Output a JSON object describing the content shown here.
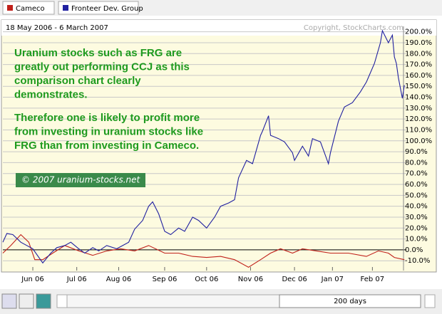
{
  "chart_data": {
    "type": "line",
    "date_range": "18 May 2006 - 6 March 2007",
    "copyright": "Copyright, StockCharts.com",
    "annotation": [
      "Uranium stocks such as FRG are",
      "greatly out performing CCJ as this",
      "comparison chart clearly",
      "demonstrates.",
      "Therefore one is likely to profit more",
      "from investing in uranium stocks like",
      "FRG than from investing in Cameco."
    ],
    "watermark": "© 2007 uranium-stocks.net",
    "period": "200 days",
    "xlim": [
      0,
      202
    ],
    "xticks": [
      {
        "value": 15,
        "label": "Jun 06"
      },
      {
        "value": 37,
        "label": "Jul 06"
      },
      {
        "value": 58,
        "label": "Aug 06"
      },
      {
        "value": 81,
        "label": "Sep 06"
      },
      {
        "value": 102,
        "label": "Oct 06"
      },
      {
        "value": 124,
        "label": "Nov 06"
      },
      {
        "value": 146,
        "label": "Dec 06"
      },
      {
        "value": 165,
        "label": "Jan 07"
      },
      {
        "value": 185,
        "label": "Feb 07"
      }
    ],
    "ylim": [
      -19,
      205
    ],
    "yticks": [
      {
        "value": -10,
        "label": "-10.0%"
      },
      {
        "value": 0,
        "label": "0.0%"
      },
      {
        "value": 10,
        "label": "10.0%"
      },
      {
        "value": 20,
        "label": "20.0%"
      },
      {
        "value": 30,
        "label": "30.0%"
      },
      {
        "value": 40,
        "label": "40.0%"
      },
      {
        "value": 50,
        "label": "50.0%"
      },
      {
        "value": 60,
        "label": "60.0%"
      },
      {
        "value": 70,
        "label": "70.0%"
      },
      {
        "value": 80,
        "label": "80.0%"
      },
      {
        "value": 90,
        "label": "90.0%"
      },
      {
        "value": 100,
        "label": "100.0%"
      },
      {
        "value": 110,
        "label": "110.0%"
      },
      {
        "value": 120,
        "label": "120.0%"
      },
      {
        "value": 130,
        "label": "130.0%"
      },
      {
        "value": 140,
        "label": "140.0%"
      },
      {
        "value": 150,
        "label": "150.0%"
      },
      {
        "value": 160,
        "label": "160.0%"
      },
      {
        "value": 170,
        "label": "170.0%"
      },
      {
        "value": 180,
        "label": "180.0%"
      },
      {
        "value": 190,
        "label": "190.0%"
      },
      {
        "value": 200,
        "label": "200.0%"
      }
    ],
    "grid": true,
    "series": [
      {
        "name": "Cameco",
        "color": "#c0201a",
        "x": [
          0,
          4,
          9,
          13,
          16,
          20,
          25,
          31,
          38,
          45,
          52,
          59,
          66,
          73,
          81,
          88,
          95,
          102,
          109,
          116,
          123,
          129,
          134,
          139,
          145,
          150,
          157,
          164,
          173,
          182,
          188,
          193,
          196,
          201
        ],
        "values": [
          -3,
          4,
          14,
          7,
          -9,
          -9,
          -3,
          4,
          -1,
          -5,
          -1,
          1,
          -1,
          4,
          -3,
          -3,
          -6,
          -7,
          -6,
          -9,
          -16,
          -9,
          -3,
          1,
          -3,
          1,
          -1,
          -3,
          -3,
          -6,
          -1,
          -3,
          -7,
          -9
        ]
      },
      {
        "name": "Fronteer Dev. Group",
        "color": "#2020a0",
        "x": [
          0,
          2,
          5,
          9,
          15,
          20,
          24,
          27,
          31,
          34,
          38,
          41,
          45,
          48,
          52,
          57,
          63,
          66,
          70,
          73,
          75,
          78,
          81,
          84,
          88,
          91,
          95,
          98,
          102,
          106,
          109,
          113,
          116,
          118,
          122,
          125,
          129,
          130,
          133,
          134,
          138,
          141,
          145,
          146,
          150,
          153,
          155,
          159,
          163,
          164,
          168,
          171,
          175,
          179,
          182,
          186,
          189,
          190,
          193,
          195,
          196,
          197,
          198,
          200,
          201
        ],
        "values": [
          7,
          15,
          14,
          7,
          1,
          -12,
          -3,
          2,
          4,
          7,
          1,
          -3,
          2,
          -1,
          4,
          1,
          7,
          19,
          27,
          40,
          44,
          33,
          17,
          14,
          20,
          17,
          30,
          27,
          20,
          30,
          40,
          43,
          46,
          66,
          82,
          79,
          105,
          109,
          123,
          105,
          102,
          99,
          89,
          82,
          95,
          86,
          102,
          99,
          79,
          89,
          118,
          131,
          135,
          145,
          154,
          171,
          190,
          201,
          190,
          197,
          177,
          171,
          158,
          139,
          151
        ]
      }
    ]
  }
}
